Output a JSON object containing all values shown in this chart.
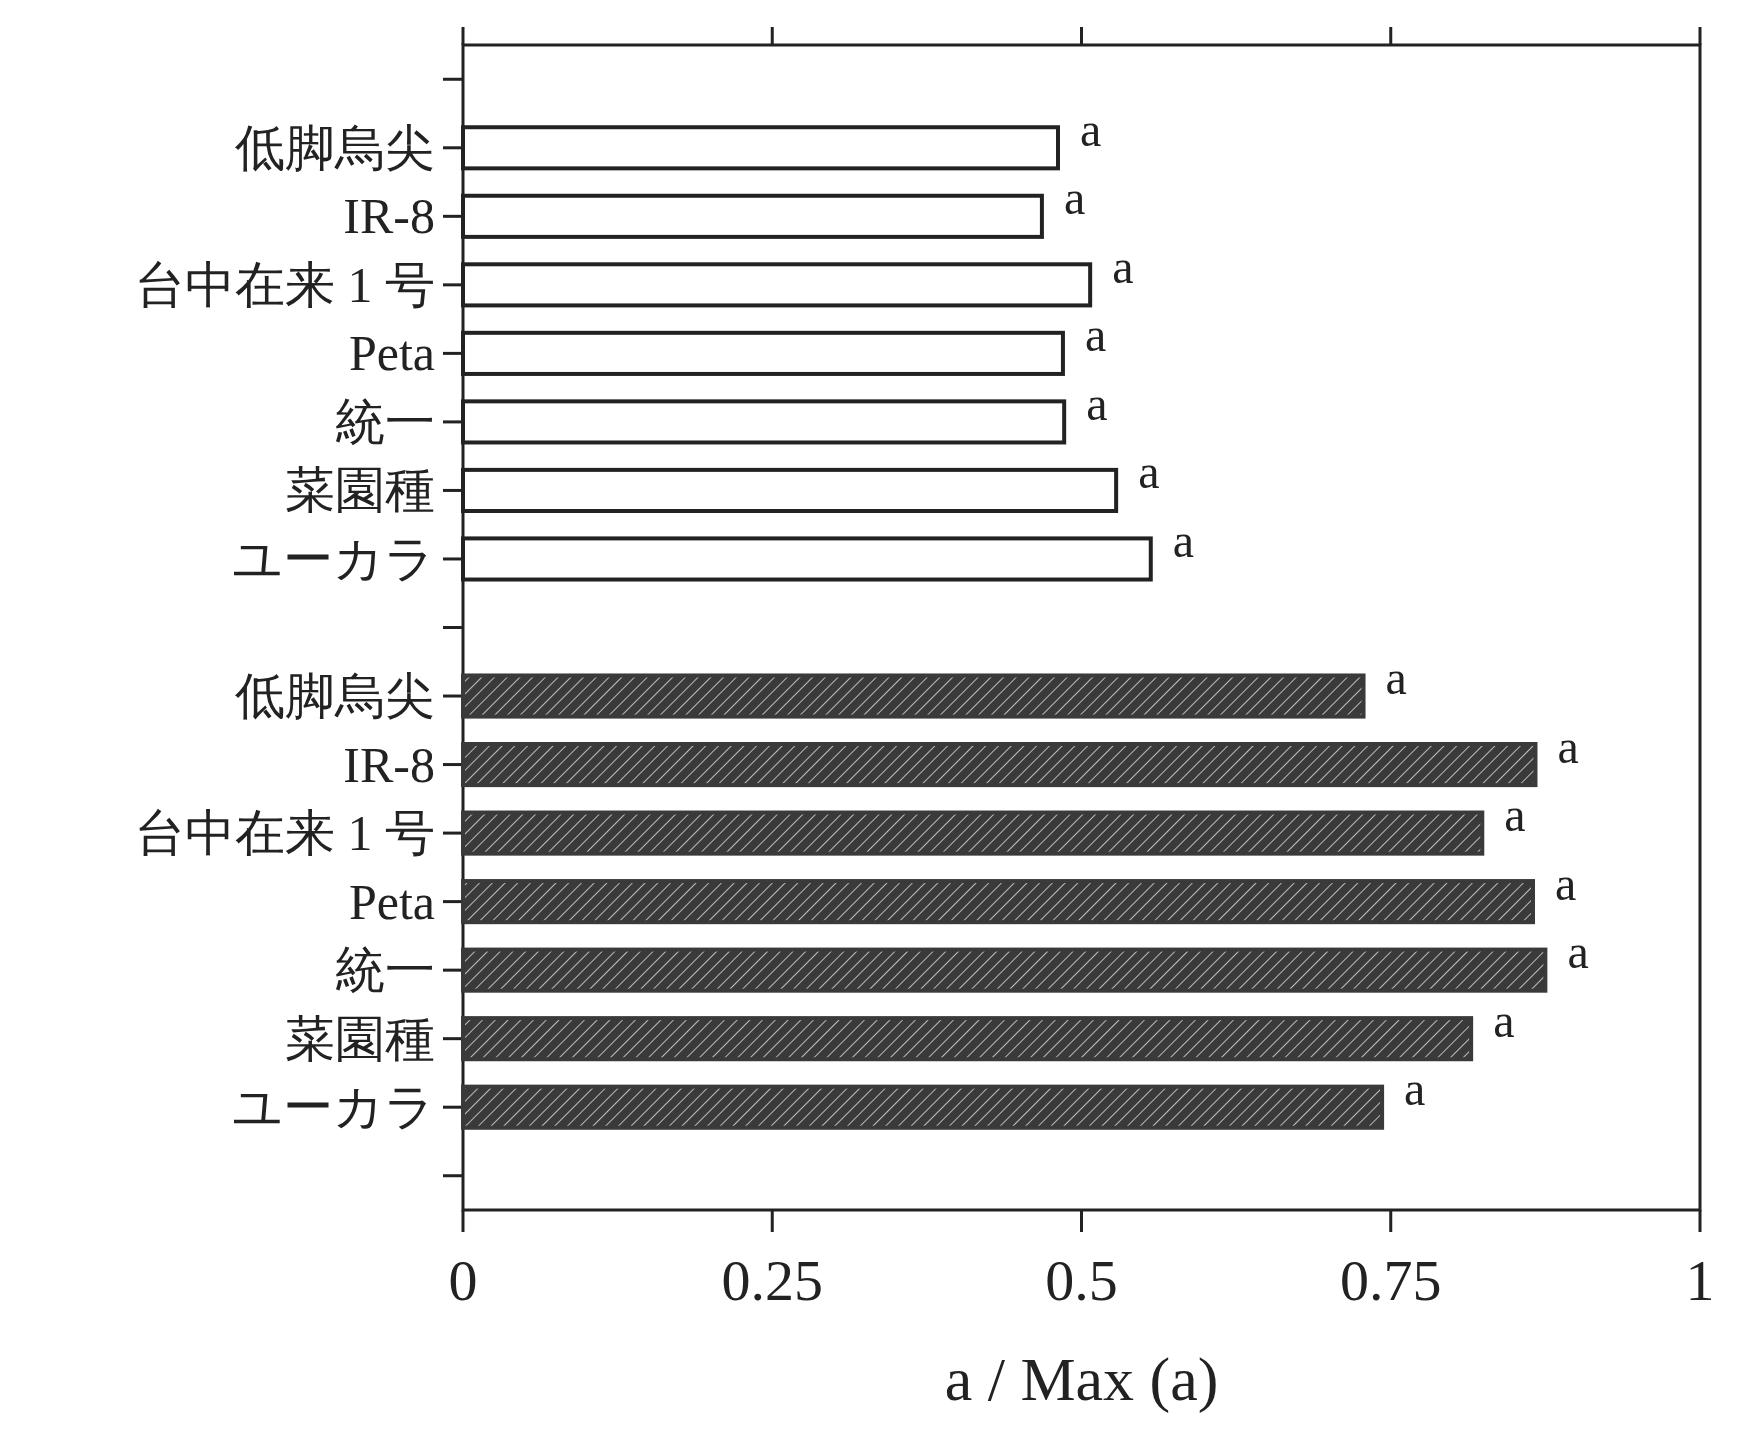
{
  "chart_data": {
    "type": "bar",
    "orientation": "horizontal",
    "categories": [
      null,
      "低脚烏尖",
      "IR-8",
      "台中在来 1 号",
      "Peta",
      "統一",
      "菜園種",
      "ユーカラ",
      null,
      "低脚烏尖",
      "IR-8",
      "台中在来 1 号",
      "Peta",
      "統一",
      "菜園種",
      "ユーカラ",
      null
    ],
    "series": [
      {
        "color": "#ffffff",
        "values": [
          null,
          0.481,
          0.468,
          0.507,
          0.485,
          0.486,
          0.528,
          0.556,
          null,
          null,
          null,
          null,
          null,
          null,
          null,
          null,
          null
        ],
        "value_labels": [
          null,
          "a",
          "a",
          "a",
          "a",
          "a",
          "a",
          "a",
          null,
          null,
          null,
          null,
          null,
          null,
          null,
          null,
          null
        ]
      },
      {
        "color": "#3a3a3a",
        "values": [
          null,
          null,
          null,
          null,
          null,
          null,
          null,
          null,
          null,
          0.728,
          0.867,
          0.824,
          0.865,
          0.875,
          0.815,
          0.743,
          null
        ],
        "value_labels": [
          null,
          null,
          null,
          null,
          null,
          null,
          null,
          null,
          null,
          "a",
          "a",
          "a",
          "a",
          "a",
          "a",
          "a",
          null
        ]
      }
    ],
    "xlabel": "a / Max (a)",
    "xlim": [
      0,
      1
    ],
    "xticks": [
      0,
      0.25,
      0.5,
      0.75,
      1
    ],
    "grid": false
  }
}
